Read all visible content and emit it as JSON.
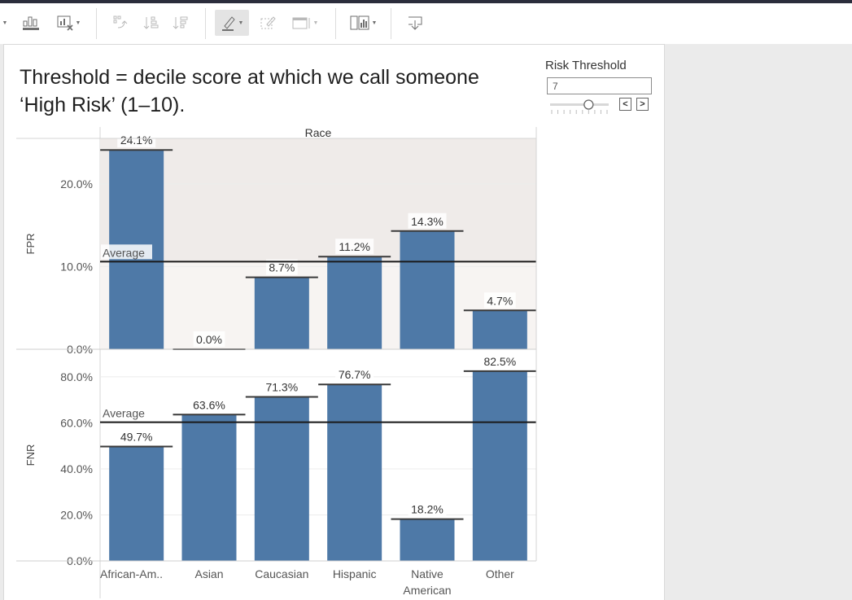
{
  "title": "Threshold = decile score at which we call someone ‘High Risk’ (1–10).",
  "control": {
    "label": "Risk Threshold",
    "value": "7",
    "slider_min": 1,
    "slider_max": 10,
    "prev_label": "<",
    "next_label": ">"
  },
  "toolbar": {
    "icons": [
      "data-guide-icon",
      "clear-sheet-icon",
      "swap-icon",
      "sort-ascending-icon",
      "sort-descending-icon",
      "highlight-icon",
      "group-icon",
      "fit-icon",
      "show-me-icon",
      "download-icon"
    ]
  },
  "chart_data": [
    {
      "type": "bar",
      "column_header": "Race",
      "ylabel": "FPR",
      "categories": [
        "African-Am..",
        "Asian",
        "Caucasian",
        "Hispanic",
        "Native American",
        "Other"
      ],
      "values": [
        24.1,
        0.0,
        8.7,
        11.2,
        14.3,
        4.7
      ],
      "data_labels": [
        "24.1%",
        "0.0%",
        "8.7%",
        "11.2%",
        "14.3%",
        "4.7%"
      ],
      "yticks": [
        0,
        10,
        20
      ],
      "ytick_labels": [
        "0.0%",
        "10.0%",
        "20.0%"
      ],
      "ylim": [
        0,
        25.5
      ],
      "reference_line": {
        "label": "Average",
        "value": 10.6
      },
      "highlight_band": {
        "from": 10.6,
        "to": 25.5
      }
    },
    {
      "type": "bar",
      "ylabel": "FNR",
      "categories": [
        "African-Am..",
        "Asian",
        "Caucasian",
        "Hispanic",
        "Native American",
        "Other"
      ],
      "values": [
        49.7,
        63.6,
        71.3,
        76.7,
        18.2,
        82.5
      ],
      "data_labels": [
        "49.7%",
        "63.6%",
        "71.3%",
        "76.7%",
        "18.2%",
        "82.5%"
      ],
      "yticks": [
        0,
        20,
        40,
        60,
        80
      ],
      "ytick_labels": [
        "0.0%",
        "20.0%",
        "40.0%",
        "60.0%",
        "80.0%"
      ],
      "ylim": [
        0,
        92
      ],
      "reference_line": {
        "label": "Average",
        "value": 60.3
      }
    }
  ],
  "colors": {
    "bar": "#4e79a7",
    "band_top": "#efebe9",
    "band_bottom": "#f7f4f2",
    "reference_line": "#1a1a1a"
  }
}
